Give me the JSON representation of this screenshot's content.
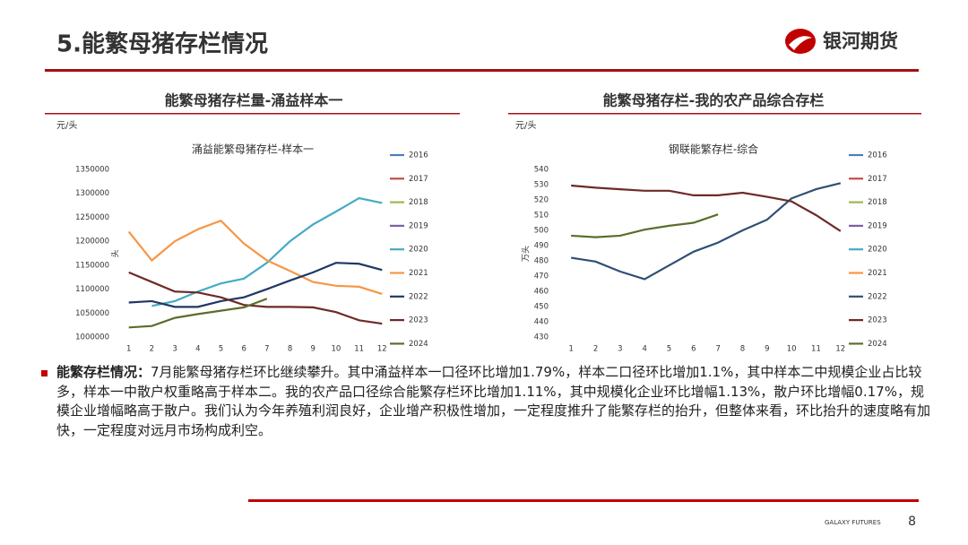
{
  "header": {
    "title": "5.能繁母猪存栏情况",
    "logo": "银河期货"
  },
  "chart_data": [
    {
      "type": "line",
      "heading": "能繁母猪存栏量-涌益样本一",
      "unit": "元/头",
      "title": "涌益能繁母猪存栏-样本一",
      "ylabel": "头",
      "x": [
        1,
        2,
        3,
        4,
        5,
        6,
        7,
        8,
        9,
        10,
        11,
        12
      ],
      "xlim": [
        0.7,
        12.3
      ],
      "xticks": [
        1,
        2,
        3,
        4,
        5,
        6,
        7,
        8,
        9,
        10,
        11,
        12
      ],
      "ylim": [
        1000000,
        1350000
      ],
      "yticks": [
        1000000,
        1050000,
        1100000,
        1150000,
        1200000,
        1250000,
        1300000,
        1350000
      ],
      "grid": false,
      "series": [
        {
          "name": "2016",
          "color": "#4a7ebb",
          "values": [
            null,
            null,
            null,
            null,
            null,
            null,
            null,
            null,
            null,
            null,
            null,
            null
          ]
        },
        {
          "name": "2017",
          "color": "#be4b48",
          "values": [
            null,
            null,
            null,
            null,
            null,
            null,
            null,
            null,
            null,
            null,
            null,
            null
          ]
        },
        {
          "name": "2018",
          "color": "#98b954",
          "values": [
            null,
            null,
            null,
            null,
            null,
            null,
            null,
            null,
            null,
            null,
            null,
            null
          ]
        },
        {
          "name": "2019",
          "color": "#7d60a0",
          "values": [
            null,
            null,
            null,
            null,
            null,
            null,
            null,
            null,
            null,
            null,
            null,
            null
          ]
        },
        {
          "name": "2020",
          "color": "#46aac5",
          "values": [
            null,
            1065000,
            1075000,
            1095000,
            1112000,
            1122000,
            1155000,
            1200000,
            1235000,
            1262000,
            1290000,
            1280000
          ]
        },
        {
          "name": "2021",
          "color": "#f79646",
          "values": [
            1220000,
            1160000,
            1200000,
            1225000,
            1243000,
            1195000,
            1160000,
            1138000,
            1115000,
            1107000,
            1105000,
            1090000
          ]
        },
        {
          "name": "2022",
          "color": "#1f3864",
          "values": [
            1072000,
            1075000,
            1063000,
            1063000,
            1075000,
            1083000,
            1100000,
            1118000,
            1135000,
            1155000,
            1153000,
            1140000
          ]
        },
        {
          "name": "2023",
          "color": "#6e2a28",
          "values": [
            1135000,
            1115000,
            1095000,
            1093000,
            1083000,
            1067000,
            1063000,
            1063000,
            1062000,
            1052000,
            1035000,
            1028000
          ]
        },
        {
          "name": "2024",
          "color": "#5a6e2c",
          "values": [
            1020000,
            1023000,
            1040000,
            1048000,
            1055000,
            1062000,
            1080000,
            null,
            null,
            null,
            null,
            null
          ]
        }
      ]
    },
    {
      "type": "line",
      "heading": "能繁母猪存栏-我的农产品综合存栏",
      "unit": "元/头",
      "title": "钢联能繁存栏-综合",
      "ylabel": "万头",
      "x": [
        1,
        2,
        3,
        4,
        5,
        6,
        7,
        8,
        9,
        10,
        11,
        12
      ],
      "xlim": [
        0.7,
        12.3
      ],
      "xticks": [
        1,
        2,
        3,
        4,
        5,
        6,
        7,
        8,
        9,
        10,
        11,
        12
      ],
      "ylim": [
        430,
        540
      ],
      "yticks": [
        430,
        440,
        450,
        460,
        470,
        480,
        490,
        500,
        510,
        520,
        530,
        540
      ],
      "grid": false,
      "series": [
        {
          "name": "2016",
          "color": "#4a7ebb",
          "values": [
            null,
            null,
            null,
            null,
            null,
            null,
            null,
            null,
            null,
            null,
            null,
            null
          ]
        },
        {
          "name": "2017",
          "color": "#be4b48",
          "values": [
            null,
            null,
            null,
            null,
            null,
            null,
            null,
            null,
            null,
            null,
            null,
            null
          ]
        },
        {
          "name": "2018",
          "color": "#98b954",
          "values": [
            null,
            null,
            null,
            null,
            null,
            null,
            null,
            null,
            null,
            null,
            null,
            null
          ]
        },
        {
          "name": "2019",
          "color": "#7d60a0",
          "values": [
            null,
            null,
            null,
            null,
            null,
            null,
            null,
            null,
            null,
            null,
            null,
            null
          ]
        },
        {
          "name": "2020",
          "color": "#46aac5",
          "values": [
            null,
            null,
            null,
            null,
            null,
            null,
            null,
            null,
            null,
            null,
            null,
            null
          ]
        },
        {
          "name": "2021",
          "color": "#f79646",
          "values": [
            null,
            null,
            null,
            null,
            null,
            null,
            null,
            null,
            null,
            null,
            null,
            null
          ]
        },
        {
          "name": "2022",
          "color": "#2f4f75",
          "values": [
            482,
            479.5,
            473,
            468,
            477,
            486,
            492,
            500,
            507,
            521,
            527,
            531
          ]
        },
        {
          "name": "2023",
          "color": "#6e2a28",
          "values": [
            529.4,
            528,
            527,
            526,
            526,
            523,
            523,
            524.7,
            522,
            519,
            510,
            499.5
          ]
        },
        {
          "name": "2024",
          "color": "#5a6e2c",
          "values": [
            496.5,
            495.5,
            496.5,
            500.5,
            503,
            505,
            510.5,
            null,
            null,
            null,
            null,
            null
          ]
        }
      ]
    }
  ],
  "body": {
    "lead": "能繁存栏情况：",
    "text": "7月能繁母猪存栏环比继续攀升。其中涌益样本一口径环比增加1.79%，样本二口径环比增加1.1%，其中样本二中规模企业占比较多，样本一中散户权重略高于样本二。我的农产品口径综合能繁存栏环比增加1.11%，其中规模化企业环比增幅1.13%，散户环比增幅0.17%，规模企业增幅略高于散户。我们认为今年养殖利润良好，企业增产积极性增加，一定程度推升了能繁存栏的抬升，但整体来看，环比抬升的速度略有加快，一定程度对远月市场构成利空。"
  },
  "footer": {
    "brand": "GALAXY FUTURES",
    "page": "8"
  }
}
